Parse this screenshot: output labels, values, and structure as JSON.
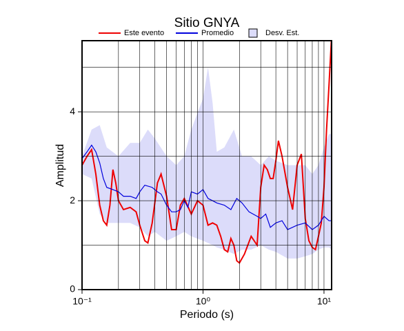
{
  "chart_data": {
    "type": "line",
    "title": "Sitio GNYA",
    "xlabel": "Periodo (s)",
    "ylabel": "Amplitud",
    "xscale": "log",
    "xlim": [
      0.1,
      11.56
    ],
    "ylim": [
      0,
      5.6
    ],
    "xticks": [
      {
        "value": 0.1,
        "label": "10⁻¹"
      },
      {
        "value": 1,
        "label": "10⁰"
      },
      {
        "value": 10,
        "label": "10¹"
      }
    ],
    "x_minor_ticks": [
      0.2,
      0.3,
      0.4,
      0.5,
      0.6,
      0.7,
      0.8,
      0.9,
      2,
      3,
      4,
      5,
      6,
      7,
      8,
      9
    ],
    "yticks": [
      0,
      2,
      4
    ],
    "y_minor_ticks": [
      1,
      3,
      5
    ],
    "grid": true,
    "band": {
      "name": "Desv. Est.",
      "color": "#dcdcfa",
      "x": [
        0.1,
        0.12,
        0.14,
        0.16,
        0.2,
        0.25,
        0.3,
        0.35,
        0.4,
        0.5,
        0.6,
        0.7,
        0.8,
        1.0,
        1.1,
        1.2,
        1.3,
        1.5,
        1.8,
        2.1,
        2.5,
        3.0,
        3.5,
        4.0,
        5,
        6,
        7,
        8,
        9,
        10,
        11,
        11.5
      ],
      "upper": [
        3.0,
        3.6,
        3.7,
        3.2,
        3.0,
        3.3,
        3.3,
        3.6,
        3.4,
        3.0,
        2.8,
        3.0,
        3.6,
        4.3,
        5.0,
        4.2,
        3.1,
        3.2,
        3.6,
        3.0,
        3.0,
        2.8,
        3.0,
        2.9,
        2.8,
        2.8,
        2.8,
        2.6,
        2.8,
        3.2,
        3.5,
        3.5
      ],
      "lower": [
        2.6,
        2.5,
        1.7,
        1.5,
        1.5,
        1.5,
        1.4,
        1.2,
        1.3,
        1.1,
        1.2,
        1.3,
        1.2,
        1.1,
        1.05,
        1.0,
        0.95,
        0.9,
        0.8,
        0.9,
        0.9,
        1.0,
        0.9,
        0.85,
        0.7,
        0.7,
        0.75,
        0.8,
        0.9,
        0.95,
        0.95,
        0.9
      ]
    },
    "series": [
      {
        "name": "Este evento",
        "color": "#ee0000",
        "width": 2,
        "x": [
          0.1,
          0.11,
          0.12,
          0.13,
          0.14,
          0.15,
          0.16,
          0.17,
          0.18,
          0.19,
          0.2,
          0.22,
          0.25,
          0.28,
          0.3,
          0.33,
          0.35,
          0.38,
          0.42,
          0.45,
          0.5,
          0.55,
          0.6,
          0.65,
          0.7,
          0.8,
          0.9,
          1.0,
          1.1,
          1.2,
          1.3,
          1.4,
          1.5,
          1.6,
          1.7,
          1.8,
          1.9,
          2.0,
          2.2,
          2.5,
          2.8,
          3.0,
          3.2,
          3.4,
          3.6,
          3.8,
          4.0,
          4.2,
          4.5,
          5.0,
          5.5,
          6.0,
          6.5,
          7.0,
          7.5,
          8.0,
          8.5,
          9.0,
          9.5,
          10,
          10.5,
          11,
          11.5
        ],
        "values": [
          2.8,
          3.0,
          3.15,
          2.6,
          1.9,
          1.55,
          1.45,
          1.9,
          2.7,
          2.4,
          2.0,
          1.8,
          1.85,
          1.75,
          1.45,
          1.1,
          1.05,
          1.5,
          2.4,
          2.6,
          2.1,
          1.35,
          1.35,
          1.9,
          2.05,
          1.7,
          2.0,
          1.9,
          1.45,
          1.5,
          1.45,
          1.2,
          0.9,
          0.85,
          1.15,
          1.0,
          0.65,
          0.6,
          0.8,
          1.2,
          1.0,
          2.3,
          2.8,
          2.7,
          2.5,
          2.5,
          2.9,
          3.35,
          3.0,
          2.3,
          1.8,
          2.8,
          3.05,
          1.6,
          1.1,
          0.95,
          0.9,
          1.2,
          1.5,
          2.3,
          3.6,
          4.6,
          5.6
        ]
      },
      {
        "name": "Promedio",
        "color": "#0000dd",
        "width": 1.2,
        "x": [
          0.1,
          0.11,
          0.12,
          0.13,
          0.14,
          0.15,
          0.16,
          0.18,
          0.2,
          0.22,
          0.25,
          0.28,
          0.3,
          0.33,
          0.38,
          0.42,
          0.45,
          0.5,
          0.55,
          0.6,
          0.65,
          0.7,
          0.75,
          0.8,
          0.9,
          1.0,
          1.1,
          1.2,
          1.3,
          1.5,
          1.7,
          1.9,
          2.1,
          2.4,
          2.8,
          3.0,
          3.3,
          3.6,
          4.0,
          4.5,
          5.0,
          6.0,
          7.0,
          8.0,
          9.0,
          10,
          11,
          11.5
        ],
        "values": [
          2.95,
          3.1,
          3.25,
          3.1,
          2.85,
          2.5,
          2.3,
          2.25,
          2.2,
          2.1,
          2.1,
          2.05,
          2.2,
          2.35,
          2.3,
          2.2,
          2.15,
          1.9,
          1.75,
          1.75,
          1.8,
          2.0,
          1.85,
          2.2,
          2.15,
          2.25,
          2.05,
          2.0,
          1.95,
          1.9,
          1.8,
          2.05,
          1.95,
          1.75,
          1.65,
          1.6,
          1.7,
          1.4,
          1.5,
          1.55,
          1.35,
          1.45,
          1.5,
          1.35,
          1.45,
          1.65,
          1.55,
          1.55
        ]
      }
    ]
  }
}
